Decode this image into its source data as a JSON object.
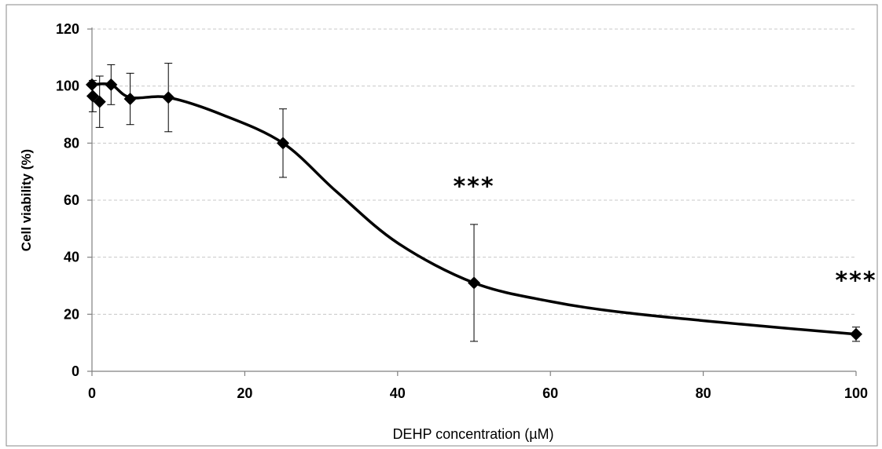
{
  "chart_data": {
    "type": "line",
    "title": "",
    "xlabel": "DEHP concentration (µM)",
    "ylabel": "Cell viability (%)",
    "xlim": [
      0,
      100
    ],
    "ylim": [
      0,
      120
    ],
    "x_ticks": [
      0,
      20,
      40,
      60,
      80,
      100
    ],
    "y_ticks": [
      0,
      20,
      40,
      60,
      80,
      100,
      120
    ],
    "x_tick_labels": [
      "0",
      "20",
      "40",
      "60",
      "80",
      "100"
    ],
    "y_tick_labels": [
      "0",
      "20",
      "40",
      "60",
      "80",
      "100",
      "120"
    ],
    "grid": "horizontal-dashed",
    "legend": "none",
    "line_color": "#000000",
    "marker": "diamond",
    "series": [
      {
        "points": [
          {
            "x": 0,
            "y": 100.5,
            "err": 0
          },
          {
            "x": 0.1,
            "y": 96.5,
            "err": 5.5
          },
          {
            "x": 1,
            "y": 94.5,
            "err": 9
          },
          {
            "x": 2.5,
            "y": 100.5,
            "err": 7
          },
          {
            "x": 5,
            "y": 95.5,
            "err": 9
          },
          {
            "x": 10,
            "y": 96,
            "err": 12
          },
          {
            "x": 25,
            "y": 80,
            "err": 12
          },
          {
            "x": 50,
            "y": 31,
            "err": 20.5
          },
          {
            "x": 100,
            "y": 13,
            "err": 2.5
          }
        ]
      }
    ],
    "fit_curve": [
      {
        "x": 0,
        "y": 100.5
      },
      {
        "x": 2.5,
        "y": 100.5
      },
      {
        "x": 5,
        "y": 96
      },
      {
        "x": 10,
        "y": 96
      },
      {
        "x": 17,
        "y": 90
      },
      {
        "x": 25,
        "y": 80
      },
      {
        "x": 32,
        "y": 63
      },
      {
        "x": 40,
        "y": 45
      },
      {
        "x": 50,
        "y": 31
      },
      {
        "x": 60,
        "y": 24.5
      },
      {
        "x": 70,
        "y": 20.5
      },
      {
        "x": 85,
        "y": 16.5
      },
      {
        "x": 100,
        "y": 13
      }
    ],
    "annotations": [
      {
        "text": "***",
        "x": 50,
        "y": 62
      },
      {
        "text": "***",
        "x": 100,
        "y": 29
      }
    ]
  }
}
